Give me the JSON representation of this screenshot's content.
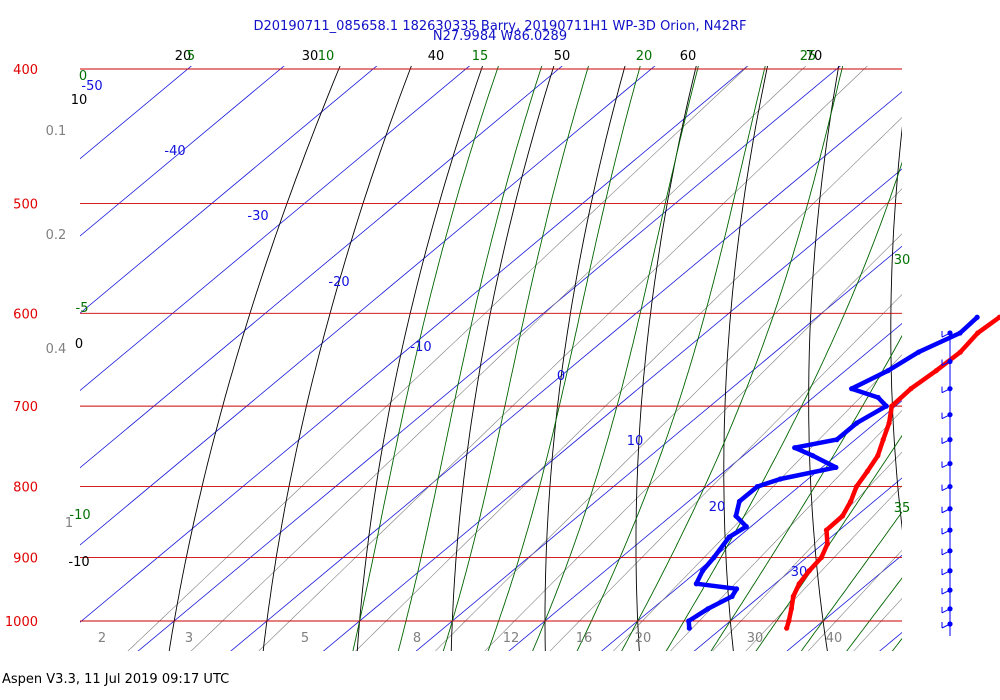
{
  "chart_data": {
    "type": "skew-t",
    "title": "D20190711_085658.1 182630335 Barry, 20190711H1 WP-3D Orion, N42RF",
    "subtitle": "N27.9984 W86.0289",
    "footer": "Aspen V3.3, 11 Jul 2019  09:17 UTC",
    "pressure_levels": [
      {
        "value": 400,
        "label": "400"
      },
      {
        "value": 500,
        "label": "500"
      },
      {
        "value": 600,
        "label": "600"
      },
      {
        "value": 700,
        "label": "700"
      },
      {
        "value": 800,
        "label": "800"
      },
      {
        "value": 900,
        "label": "900"
      },
      {
        "value": 1000,
        "label": "1000"
      }
    ],
    "temperature_isotherms": [
      -50,
      -40,
      -30,
      -20,
      -10,
      0,
      10,
      20,
      30
    ],
    "temperature_labels": [
      {
        "t": -50,
        "label": "-50"
      },
      {
        "t": -40,
        "label": "-40"
      },
      {
        "t": -30,
        "label": "-30"
      },
      {
        "t": -20,
        "label": "-20"
      },
      {
        "t": -10,
        "label": "-10"
      },
      {
        "t": 0,
        "label": "0"
      },
      {
        "t": 10,
        "label": "10"
      },
      {
        "t": 20,
        "label": "20"
      },
      {
        "t": 30,
        "label": "30"
      }
    ],
    "mixing_ratio_labels": [
      {
        "w": 0.1,
        "label": "0.1"
      },
      {
        "w": 0.2,
        "label": "0.2"
      },
      {
        "w": 0.4,
        "label": "0.4"
      },
      {
        "w": 1,
        "label": "1"
      },
      {
        "w": 2,
        "label": "2"
      },
      {
        "w": 3,
        "label": "3"
      },
      {
        "w": 5,
        "label": "5"
      },
      {
        "w": 8,
        "label": "8"
      },
      {
        "w": 12,
        "label": "12"
      },
      {
        "w": 16,
        "label": "16"
      },
      {
        "w": 20,
        "label": "20"
      },
      {
        "w": 30,
        "label": "30"
      },
      {
        "w": 40,
        "label": "40"
      }
    ],
    "dry_adiabat_labels": [
      {
        "theta": 20,
        "label": "20"
      },
      {
        "theta": 30,
        "label": "30"
      },
      {
        "theta": 40,
        "label": "40"
      },
      {
        "theta": 50,
        "label": "50"
      },
      {
        "theta": 60,
        "label": "60"
      },
      {
        "theta": 70,
        "label": "70"
      },
      {
        "theta": 10,
        "label": "10"
      },
      {
        "theta": 0,
        "label": "0"
      },
      {
        "theta": -10,
        "label": "-10"
      }
    ],
    "moist_adiabat_labels": [
      {
        "t": 0,
        "label": "0"
      },
      {
        "t": 5,
        "label": "5"
      },
      {
        "t": 10,
        "label": "10"
      },
      {
        "t": 15,
        "label": "15"
      },
      {
        "t": 20,
        "label": "20"
      },
      {
        "t": 25,
        "label": "25"
      },
      {
        "t": 30,
        "label": "30"
      },
      {
        "t": 35,
        "label": "35"
      },
      {
        "t": -5,
        "label": "-5"
      },
      {
        "t": -10,
        "label": "-10"
      }
    ],
    "temperature_profile": [
      {
        "p": 604,
        "t": 9.7
      },
      {
        "p": 620,
        "t": 9.4
      },
      {
        "p": 640,
        "t": 10.0
      },
      {
        "p": 660,
        "t": 9.8
      },
      {
        "p": 680,
        "t": 9.4
      },
      {
        "p": 700,
        "t": 9.6
      },
      {
        "p": 720,
        "t": 11.5
      },
      {
        "p": 740,
        "t": 13.0
      },
      {
        "p": 760,
        "t": 14.5
      },
      {
        "p": 780,
        "t": 15.4
      },
      {
        "p": 800,
        "t": 16.2
      },
      {
        "p": 820,
        "t": 17.5
      },
      {
        "p": 840,
        "t": 18.5
      },
      {
        "p": 860,
        "t": 18.6
      },
      {
        "p": 880,
        "t": 20.5
      },
      {
        "p": 900,
        "t": 21.6
      },
      {
        "p": 920,
        "t": 22.0
      },
      {
        "p": 940,
        "t": 22.6
      },
      {
        "p": 960,
        "t": 23.6
      },
      {
        "p": 980,
        "t": 25.0
      },
      {
        "p": 1000,
        "t": 26.3
      },
      {
        "p": 1012,
        "t": 27.0
      }
    ],
    "dewpoint_profile": [
      {
        "p": 604,
        "t": 7.3
      },
      {
        "p": 620,
        "t": 7.5
      },
      {
        "p": 640,
        "t": 5.5
      },
      {
        "p": 660,
        "t": 4.6
      },
      {
        "p": 680,
        "t": 3.0
      },
      {
        "p": 690,
        "t": 7.0
      },
      {
        "p": 700,
        "t": 9.0
      },
      {
        "p": 720,
        "t": 8.0
      },
      {
        "p": 740,
        "t": 8.0
      },
      {
        "p": 750,
        "t": 4.5
      },
      {
        "p": 760,
        "t": 7.5
      },
      {
        "p": 775,
        "t": 11.5
      },
      {
        "p": 790,
        "t": 7.0
      },
      {
        "p": 800,
        "t": 5.5
      },
      {
        "p": 820,
        "t": 5.5
      },
      {
        "p": 840,
        "t": 7.0
      },
      {
        "p": 855,
        "t": 9.5
      },
      {
        "p": 870,
        "t": 9.0
      },
      {
        "p": 900,
        "t": 10.0
      },
      {
        "p": 920,
        "t": 10.5
      },
      {
        "p": 940,
        "t": 11.5
      },
      {
        "p": 948,
        "t": 16.5
      },
      {
        "p": 960,
        "t": 17.0
      },
      {
        "p": 980,
        "t": 16.0
      },
      {
        "p": 1000,
        "t": 15.5
      },
      {
        "p": 1012,
        "t": 16.5
      }
    ],
    "wind_barb_pressures": [
      620,
      650,
      680,
      710,
      740,
      770,
      800,
      830,
      860,
      890,
      920,
      950,
      980,
      1005
    ],
    "colors": {
      "isobar": "#cc0000",
      "isotherm": "#1a1add",
      "dry_adiabat": "#000000",
      "mixing_ratio": "#808080",
      "moist_adiabat": "#006400",
      "temperature": "#ff0000",
      "dewpoint": "#0000ff",
      "title": "#1010c8",
      "pressure_label": "#e00000",
      "mixing_label": "#808080",
      "moist_label": "#007000",
      "temp_label": "#1010dd"
    }
  }
}
